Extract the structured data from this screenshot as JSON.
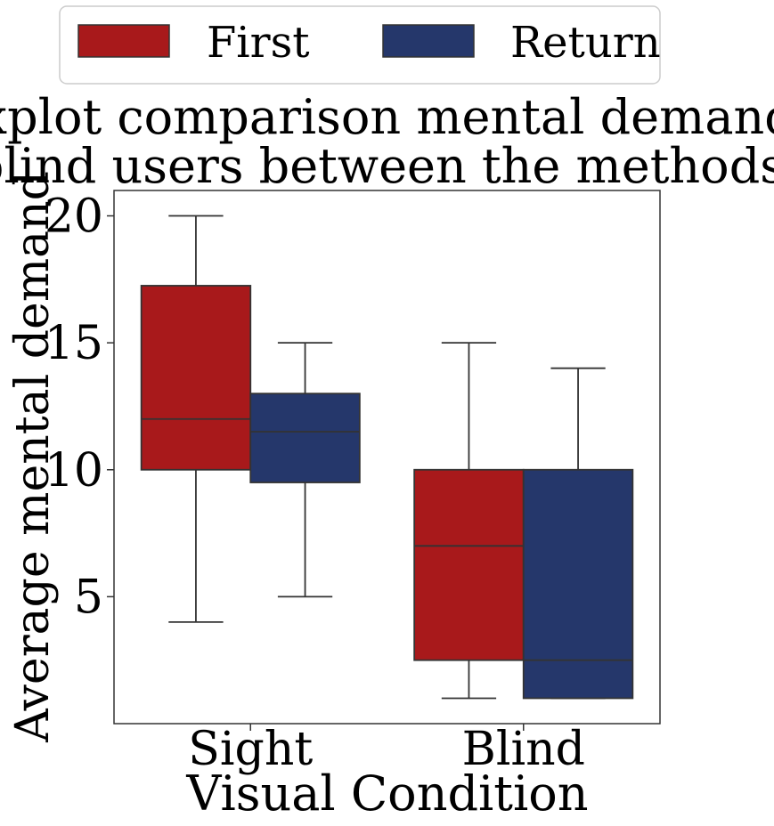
{
  "chart_data": {
    "type": "box",
    "title_lines": [
      "Boxplot comparison mental demand of",
      "blind users between the methods."
    ],
    "xlabel": "Visual Condition",
    "ylabel": "Average mental demand",
    "categories": [
      "Sight",
      "Blind"
    ],
    "ylim": [
      0,
      21
    ],
    "yticks": [
      5,
      10,
      15,
      20
    ],
    "legend_position": "top-center",
    "series": [
      {
        "name": "First",
        "color": "#a8191b",
        "boxes": [
          {
            "category": "Sight",
            "whisker_low": 4,
            "q1": 10,
            "median": 12,
            "q3": 17.25,
            "whisker_high": 20
          },
          {
            "category": "Blind",
            "whisker_low": 1,
            "q1": 2.5,
            "median": 7,
            "q3": 10,
            "whisker_high": 15
          }
        ]
      },
      {
        "name": "Return",
        "color": "#25376b",
        "boxes": [
          {
            "category": "Sight",
            "whisker_low": 5,
            "q1": 9.5,
            "median": 11.5,
            "q3": 13,
            "whisker_high": 15
          },
          {
            "category": "Blind",
            "whisker_low": 1,
            "q1": 1,
            "median": 2.5,
            "q3": 10,
            "whisker_high": 14
          }
        ]
      }
    ]
  }
}
